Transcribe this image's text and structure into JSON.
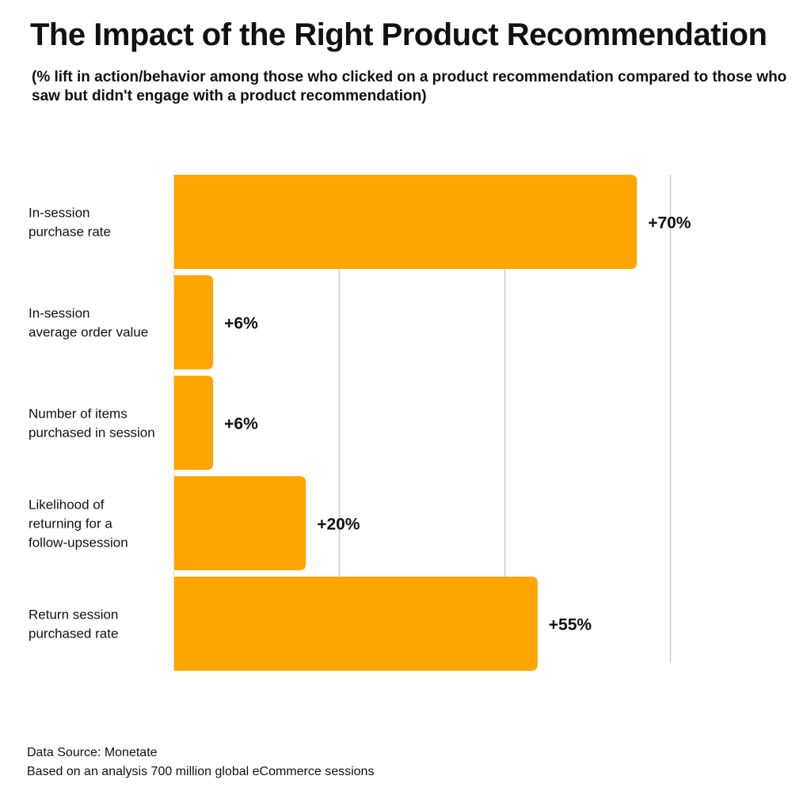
{
  "header": {
    "title": "The Impact of the Right Product Recommendation",
    "subtitle": "(% lift in action/behavior among those who clicked on a product recommendation compared to those who saw but didn't engage with a product recommendation)"
  },
  "chart_data": {
    "type": "bar",
    "orientation": "horizontal",
    "title": "The Impact of the Right Product Recommendation",
    "subtitle": "(% lift in action/behavior among those who clicked on a product recommendation compared to those who saw but didn't engage with a product recommendation)",
    "categories": [
      [
        "In-session",
        "purchase rate"
      ],
      [
        "In-session",
        "average order value"
      ],
      [
        "Number of items",
        "purchased in session"
      ],
      [
        "Likelihood of",
        "returning for a",
        "follow-upsession"
      ],
      [
        "Return session",
        "purchased rate"
      ]
    ],
    "values": [
      70,
      6,
      6,
      20,
      55
    ],
    "data_labels": [
      "+70%",
      "+6%",
      "+6%",
      "+20%",
      "+55%"
    ],
    "xlim": [
      0,
      75
    ],
    "gridlines": [
      25,
      50,
      75
    ],
    "grid": true,
    "legend": "none",
    "xlabel": "",
    "ylabel": "",
    "bar_color": "#FFA500",
    "grid_color": "#cccccc"
  },
  "footer": {
    "source": "Data Source: Monetate",
    "note": "Based on an analysis 700 million global eCommerce sessions"
  }
}
